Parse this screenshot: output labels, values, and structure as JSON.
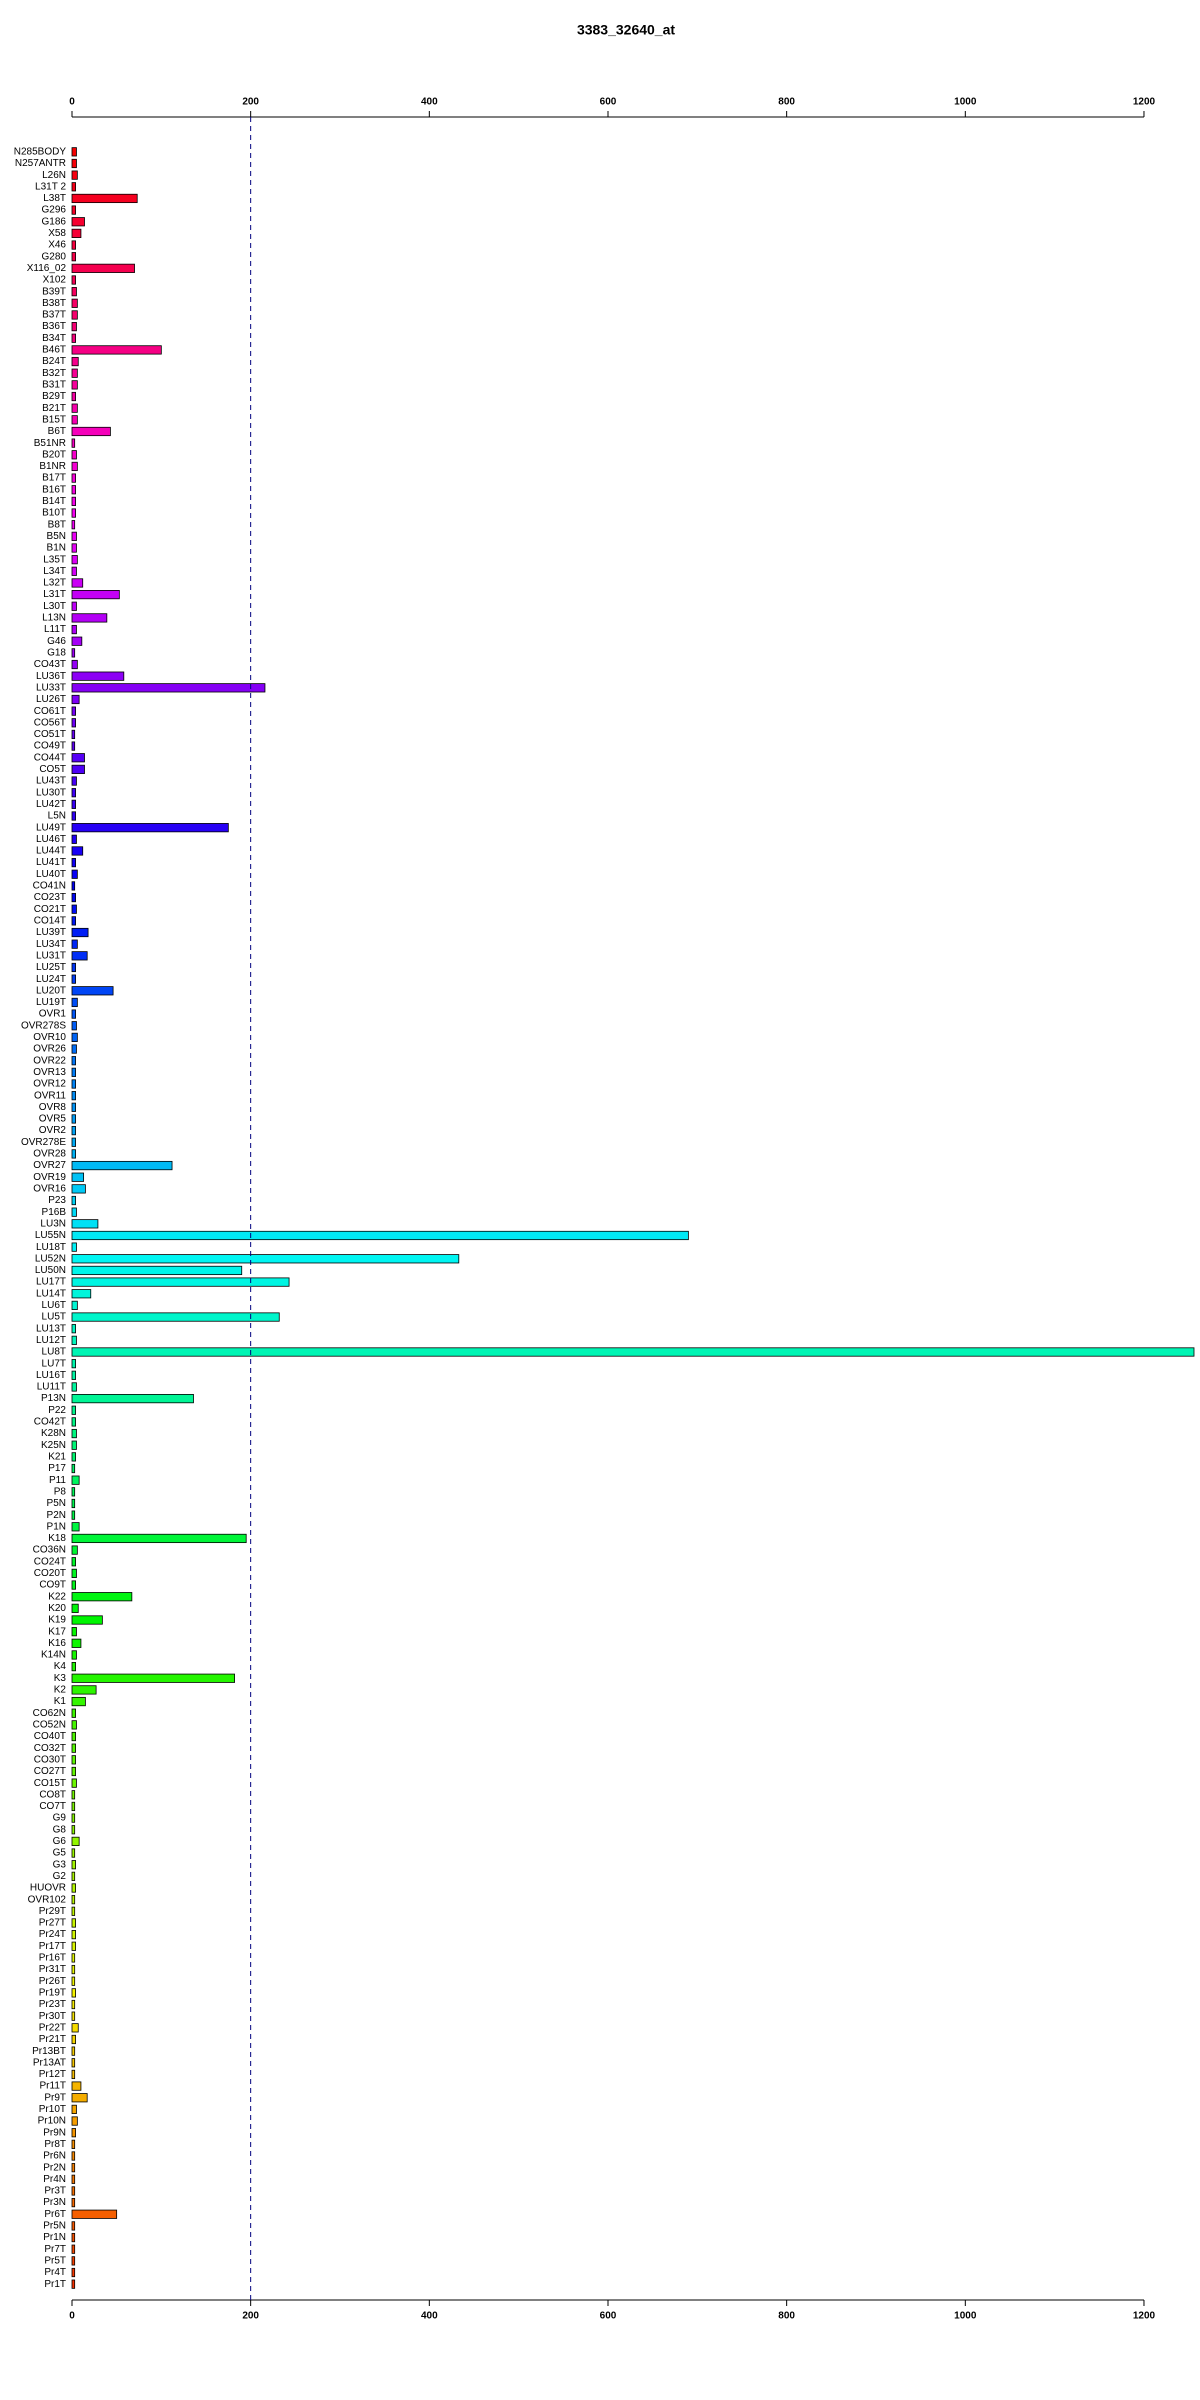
{
  "chart_data": {
    "type": "hbar",
    "title": "3383_32640_at",
    "categories": [
      "N285BODY",
      "N257ANTR",
      "L26N",
      "L31T 2",
      "L38T",
      "G296",
      "G186",
      "X58",
      "X46",
      "G280",
      "X116_02",
      "X102",
      "B39T",
      "B38T",
      "B37T",
      "B36T",
      "B34T",
      "B46T",
      "B24T",
      "B32T",
      "B31T",
      "B29T",
      "B21T",
      "B15T",
      "B6T",
      "B51NR",
      "B20T",
      "B1NR",
      "B17T",
      "B16T",
      "B14T",
      "B10T",
      "B8T",
      "B5N",
      "B1N",
      "L35T",
      "L34T",
      "L32T",
      "L31T",
      "L30T",
      "L13N",
      "L11T",
      "G46",
      "G18",
      "CO43T",
      "LU36T",
      "LU33T",
      "LU26T",
      "CO61T",
      "CO56T",
      "CO51T",
      "CO49T",
      "CO44T",
      "CO5T",
      "LU43T",
      "LU30T",
      "LU42T",
      "L5N",
      "LU49T",
      "LU46T",
      "LU44T",
      "LU41T",
      "LU40T",
      "CO41N",
      "CO23T",
      "CO21T",
      "CO14T",
      "LU39T",
      "LU34T",
      "LU31T",
      "LU25T",
      "LU24T",
      "LU20T",
      "LU19T",
      "OVR1",
      "OVR278S",
      "OVR10",
      "OVR26",
      "OVR22",
      "OVR13",
      "OVR12",
      "OVR11",
      "OVR8",
      "OVR5",
      "OVR2",
      "OVR278E",
      "OVR28",
      "OVR27",
      "OVR19",
      "OVR16",
      "P23",
      "P16B",
      "LU3N",
      "LU55N",
      "LU18T",
      "LU52N",
      "LU50N",
      "LU17T",
      "LU14T",
      "LU6T",
      "LU5T",
      "LU13T",
      "LU12T",
      "LU8T",
      "LU7T",
      "LU16T",
      "LU11T",
      "P13N",
      "P22",
      "CO42T",
      "K28N",
      "K25N",
      "K21",
      "P17",
      "P11",
      "P8",
      "P5N",
      "P2N",
      "P1N",
      "K18",
      "CO36N",
      "CO24T",
      "CO20T",
      "CO9T",
      "K22",
      "K20",
      "K19",
      "K17",
      "K16",
      "K14N",
      "K4",
      "K3",
      "K2",
      "K1",
      "CO62N",
      "CO52N",
      "CO40T",
      "CO32T",
      "CO30T",
      "CO27T",
      "CO15T",
      "CO8T",
      "CO7T",
      "G9",
      "G8",
      "G6",
      "G5",
      "G3",
      "G2",
      "HUOVR",
      "OVR102",
      "Pr29T",
      "Pr27T",
      "Pr24T",
      "Pr17T",
      "Pr16T",
      "Pr31T",
      "Pr26T",
      "Pr19T",
      "Pr23T",
      "Pr30T",
      "Pr22T",
      "Pr21T",
      "Pr13BT",
      "Pr13AT",
      "Pr12T",
      "Pr11T",
      "Pr9T",
      "Pr10T",
      "Pr10N",
      "Pr9N",
      "Pr8T",
      "Pr6N",
      "Pr2N",
      "Pr4N",
      "Pr3T",
      "Pr3N",
      "Pr6T",
      "Pr5N",
      "Pr1N",
      "Pr7T",
      "Pr5T",
      "Pr4T",
      "Pr1T"
    ],
    "values": [
      5,
      5,
      6,
      4,
      73,
      4,
      14,
      10,
      4,
      4,
      70,
      4,
      5,
      6,
      6,
      5,
      4,
      100,
      7,
      6,
      6,
      4,
      6,
      6,
      43,
      3,
      5,
      6,
      4,
      4,
      4,
      4,
      3,
      5,
      5,
      6,
      5,
      12,
      53,
      5,
      39,
      5,
      11,
      3,
      6,
      58,
      216,
      8,
      4,
      4,
      3,
      3,
      14,
      14,
      5,
      4,
      4,
      4,
      175,
      5,
      12,
      4,
      6,
      3,
      4,
      5,
      4,
      18,
      6,
      17,
      4,
      4,
      46,
      6,
      4,
      5,
      6,
      5,
      4,
      4,
      4,
      4,
      4,
      4,
      4,
      4,
      4,
      112,
      13,
      15,
      4,
      5,
      29,
      690,
      5,
      433,
      190,
      243,
      21,
      6,
      232,
      4,
      5,
      1256,
      4,
      4,
      5,
      136,
      4,
      4,
      5,
      5,
      4,
      3,
      8,
      3,
      3,
      3,
      8,
      195,
      6,
      4,
      5,
      4,
      67,
      7,
      34,
      5,
      10,
      5,
      4,
      182,
      27,
      15,
      4,
      5,
      4,
      4,
      4,
      4,
      5,
      3,
      3,
      3,
      3,
      8,
      3,
      4,
      3,
      4,
      3,
      3,
      4,
      4,
      4,
      3,
      3,
      3,
      4,
      3,
      3,
      7,
      4,
      3,
      3,
      3,
      10,
      17,
      5,
      6,
      4,
      3,
      3,
      3,
      3,
      3,
      3,
      50,
      3,
      3,
      3,
      3,
      3,
      3
    ],
    "color_scale": "rainbow",
    "xlim": [
      0,
      1256
    ],
    "xticks": [
      0,
      200,
      400,
      600,
      800,
      1000,
      1200
    ],
    "vline": 200
  }
}
